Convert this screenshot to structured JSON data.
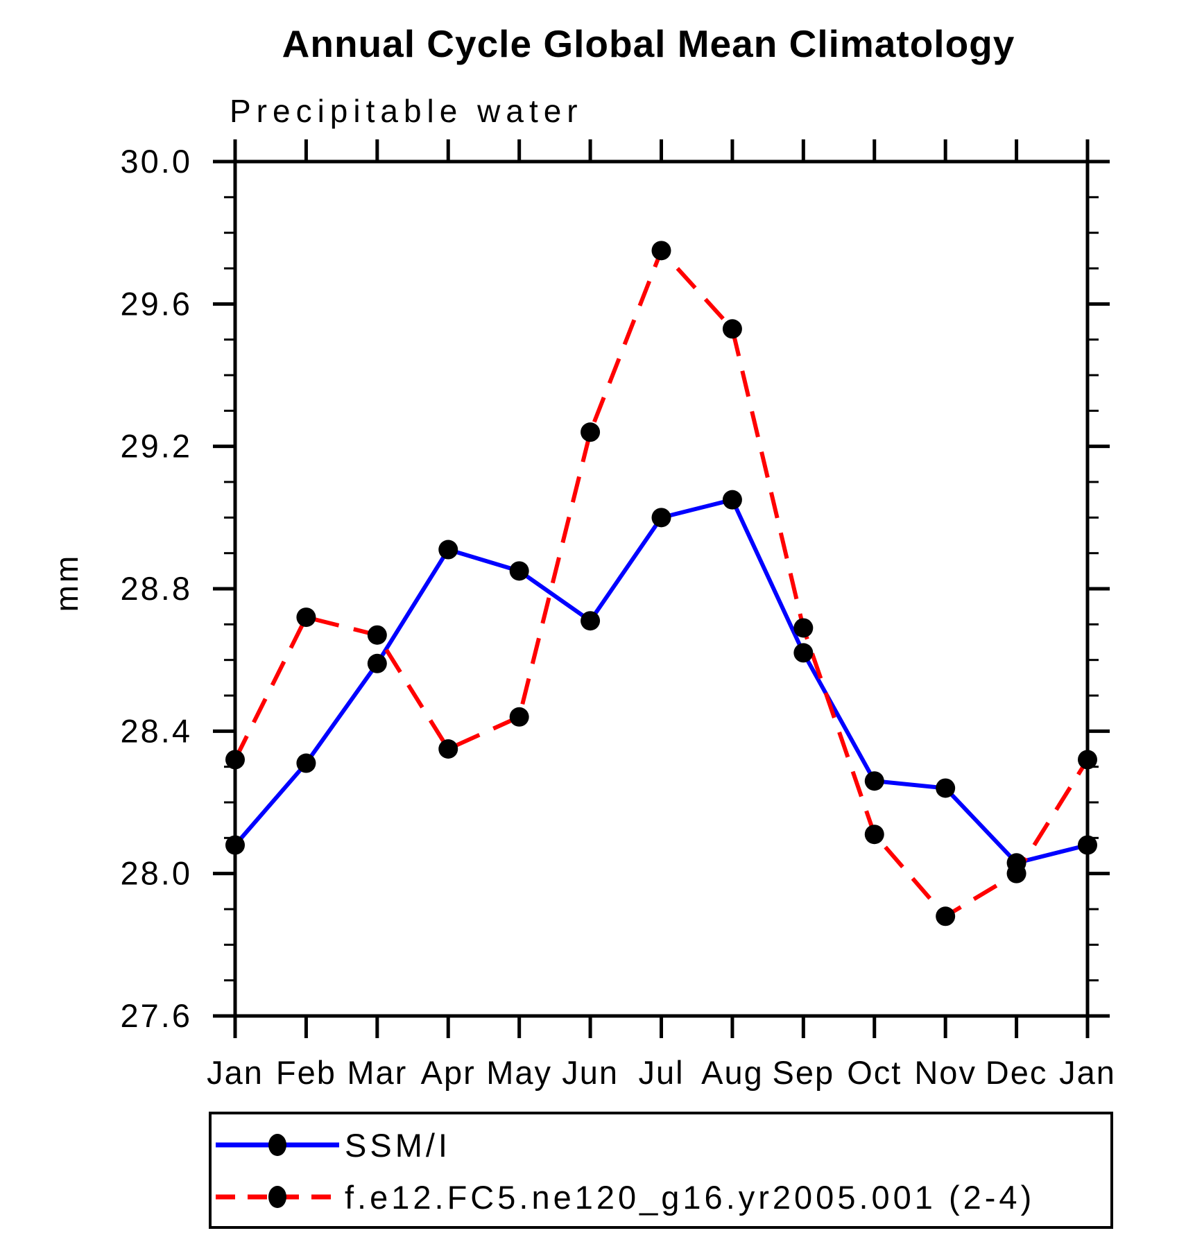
{
  "chart_data": {
    "type": "line",
    "title": "Annual Cycle Global Mean Climatology",
    "subtitle": "Precipitable water",
    "ylabel": "mm",
    "categories": [
      "Jan",
      "Feb",
      "Mar",
      "Apr",
      "May",
      "Jun",
      "Jul",
      "Aug",
      "Sep",
      "Oct",
      "Nov",
      "Dec",
      "Jan"
    ],
    "ylim": [
      27.6,
      30.0
    ],
    "ytick_major": 0.4,
    "ytick_minor": 0.1,
    "ytick_labels": [
      "30.0",
      "29.6",
      "29.2",
      "28.8",
      "28.4",
      "28.0",
      "27.6"
    ],
    "grid": false,
    "legend_position": "bottom-left-box",
    "marker": "filled-circle",
    "marker_color": "#000000",
    "series": [
      {
        "name": "SSM/I",
        "color": "#0000ff",
        "style": "solid",
        "values": [
          28.08,
          28.31,
          28.59,
          28.91,
          28.85,
          28.71,
          29.0,
          29.05,
          28.62,
          28.26,
          28.24,
          28.03,
          28.08
        ]
      },
      {
        "name": "f.e12.FC5.ne120_g16.yr2005.001 (2-4)",
        "color": "#ff0000",
        "style": "dashed",
        "values": [
          28.32,
          28.72,
          28.67,
          28.35,
          28.44,
          29.24,
          29.75,
          29.53,
          28.69,
          28.11,
          27.88,
          28.0,
          28.32
        ]
      }
    ]
  }
}
